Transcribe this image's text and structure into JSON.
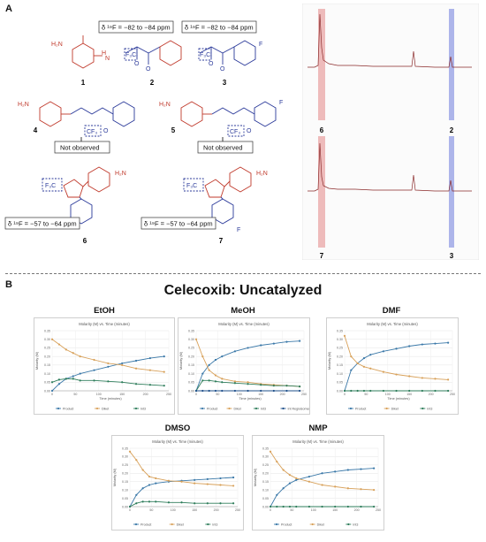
{
  "panel_a": {
    "label": "A",
    "shift_ketone": "δ ¹⁹F = −82 to −84 ppm",
    "shift_pyrazole": "δ ¹⁹F = −57 to −64 ppm",
    "not_observed": "Not observed",
    "compounds": [
      "1",
      "2",
      "3",
      "4",
      "5",
      "6",
      "7"
    ],
    "atom_cf3": "CF₃",
    "atom_f3c": "F₃C",
    "atom_o": "O",
    "atom_f": "F",
    "atom_n": "N",
    "atom_h": "H",
    "group_h2nso2": "H₂N",
    "spectra_labels": {
      "top_left": "6",
      "top_right": "2",
      "bottom_left": "7",
      "bottom_right": "3"
    },
    "colors": {
      "red": "#c0392b",
      "blue": "#2b3a9a",
      "spectrum": "#8b2b2b",
      "band_red": "#e8a0a0",
      "band_blue": "#9aa4e6"
    }
  },
  "panel_b": {
    "label": "B",
    "title": "Celecoxib: Uncatalyzed",
    "solvents": [
      "EtOH",
      "MeOH",
      "DMF",
      "DMSO",
      "NMP"
    ]
  },
  "chart_data": [
    {
      "type": "line",
      "solvent": "EtOH",
      "title": "Molarity (M) vs. Time (minutes)",
      "xlabel": "Time (minutes)",
      "ylabel": "Molarity (M)",
      "xlim": [
        0,
        250
      ],
      "ylim": [
        0,
        0.35
      ],
      "xticks": [
        0,
        50,
        100,
        150,
        200,
        250
      ],
      "yticks": [
        0,
        0.05,
        0.1,
        0.15,
        0.2,
        0.25,
        0.3,
        0.35
      ],
      "x": [
        0,
        15,
        30,
        45,
        60,
        90,
        120,
        150,
        180,
        210,
        240
      ],
      "series": [
        {
          "name": "Product",
          "color": "#3a78a8",
          "values": [
            0.0,
            0.04,
            0.07,
            0.085,
            0.1,
            0.12,
            0.14,
            0.16,
            0.175,
            0.19,
            0.2
          ]
        },
        {
          "name": "Diket",
          "color": "#d8a15a",
          "values": [
            0.3,
            0.27,
            0.24,
            0.22,
            0.2,
            0.18,
            0.16,
            0.15,
            0.13,
            0.12,
            0.11
          ]
        },
        {
          "name": "Int3",
          "color": "#2e7d5b",
          "values": [
            0.05,
            0.065,
            0.07,
            0.07,
            0.06,
            0.06,
            0.055,
            0.05,
            0.04,
            0.035,
            0.03
          ]
        }
      ],
      "legend": [
        "Product",
        "Diket",
        "Int3"
      ]
    },
    {
      "type": "line",
      "solvent": "MeOH",
      "title": "Molarity (M) vs. Time (minutes)",
      "xlabel": "Time (minutes)",
      "ylabel": "Molarity (M)",
      "xlim": [
        0,
        250
      ],
      "ylim": [
        0,
        0.35
      ],
      "xticks": [
        0,
        50,
        100,
        150,
        200,
        250
      ],
      "yticks": [
        0,
        0.05,
        0.1,
        0.15,
        0.2,
        0.25,
        0.3,
        0.35
      ],
      "x": [
        0,
        15,
        30,
        45,
        60,
        90,
        120,
        150,
        180,
        210,
        240
      ],
      "series": [
        {
          "name": "Product",
          "color": "#3a78a8",
          "values": [
            0.0,
            0.1,
            0.15,
            0.18,
            0.2,
            0.23,
            0.25,
            0.265,
            0.275,
            0.285,
            0.29
          ]
        },
        {
          "name": "Diket",
          "color": "#d8a15a",
          "values": [
            0.3,
            0.2,
            0.12,
            0.09,
            0.07,
            0.055,
            0.05,
            0.04,
            0.035,
            0.03,
            0.025
          ]
        },
        {
          "name": "Int3",
          "color": "#2e7d5b",
          "values": [
            0.0,
            0.06,
            0.06,
            0.055,
            0.05,
            0.045,
            0.04,
            0.035,
            0.03,
            0.03,
            0.025
          ]
        },
        {
          "name": "Int Regioisomer",
          "color": "#1f4f8a",
          "values": [
            0.0,
            0.0,
            0.0,
            0.0,
            0.0,
            0.0,
            0.0,
            0.0,
            0.0,
            0.0,
            0.0
          ]
        }
      ],
      "legend": [
        "Product",
        "Diket",
        "Int3",
        "Int Regioisomer"
      ]
    },
    {
      "type": "line",
      "solvent": "DMF",
      "title": "Molarity (M) vs. Time (minutes)",
      "xlabel": "Time (minutes)",
      "ylabel": "Molarity (M)",
      "xlim": [
        0,
        250
      ],
      "ylim": [
        0,
        0.35
      ],
      "xticks": [
        0,
        50,
        100,
        150,
        200,
        250
      ],
      "yticks": [
        0,
        0.05,
        0.1,
        0.15,
        0.2,
        0.25,
        0.3,
        0.35
      ],
      "x": [
        0,
        15,
        30,
        45,
        60,
        90,
        120,
        150,
        180,
        210,
        240
      ],
      "series": [
        {
          "name": "Product",
          "color": "#3a78a8",
          "values": [
            0.0,
            0.12,
            0.16,
            0.19,
            0.21,
            0.23,
            0.245,
            0.26,
            0.27,
            0.275,
            0.28
          ]
        },
        {
          "name": "Diket",
          "color": "#d8a15a",
          "values": [
            0.32,
            0.2,
            0.16,
            0.14,
            0.13,
            0.11,
            0.095,
            0.085,
            0.075,
            0.07,
            0.065
          ]
        },
        {
          "name": "Int3",
          "color": "#2e7d5b",
          "values": [
            0.0,
            0.0,
            0.0,
            0.0,
            0.0,
            0.0,
            0.0,
            0.0,
            0.0,
            0.0,
            0.0
          ]
        }
      ],
      "legend": [
        "Product",
        "Diket",
        "Int3"
      ]
    },
    {
      "type": "line",
      "solvent": "DMSO",
      "title": "Molarity (M) vs. Time (minutes)",
      "xlabel": "",
      "ylabel": "Molarity (M)",
      "xlim": [
        0,
        250
      ],
      "ylim": [
        0,
        0.35
      ],
      "xticks": [
        0,
        50,
        100,
        150,
        200,
        250
      ],
      "yticks": [
        0,
        0.05,
        0.1,
        0.15,
        0.2,
        0.25,
        0.3,
        0.35
      ],
      "x": [
        0,
        15,
        30,
        45,
        60,
        90,
        120,
        150,
        180,
        210,
        240
      ],
      "series": [
        {
          "name": "Product",
          "color": "#3a78a8",
          "values": [
            0.0,
            0.07,
            0.11,
            0.13,
            0.14,
            0.15,
            0.155,
            0.16,
            0.165,
            0.17,
            0.175
          ]
        },
        {
          "name": "Diket",
          "color": "#d8a15a",
          "values": [
            0.33,
            0.28,
            0.22,
            0.18,
            0.17,
            0.155,
            0.15,
            0.14,
            0.135,
            0.13,
            0.125
          ]
        },
        {
          "name": "Int3",
          "color": "#2e7d5b",
          "values": [
            0.0,
            0.02,
            0.03,
            0.03,
            0.03,
            0.025,
            0.025,
            0.02,
            0.02,
            0.02,
            0.02
          ]
        }
      ],
      "legend": [
        "Product",
        "Diket",
        "Int3"
      ]
    },
    {
      "type": "line",
      "solvent": "NMP",
      "title": "Molarity (M) vs. Time (minutes)",
      "xlabel": "",
      "ylabel": "Molarity (M)",
      "xlim": [
        0,
        250
      ],
      "ylim": [
        0,
        0.35
      ],
      "xticks": [
        0,
        50,
        100,
        150,
        200,
        250
      ],
      "yticks": [
        0,
        0.05,
        0.1,
        0.15,
        0.2,
        0.25,
        0.3,
        0.35
      ],
      "x": [
        0,
        15,
        30,
        45,
        60,
        90,
        120,
        150,
        180,
        210,
        240
      ],
      "series": [
        {
          "name": "Product",
          "color": "#3a78a8",
          "values": [
            0.0,
            0.07,
            0.11,
            0.14,
            0.16,
            0.18,
            0.2,
            0.21,
            0.22,
            0.225,
            0.23
          ]
        },
        {
          "name": "Diket",
          "color": "#d8a15a",
          "values": [
            0.33,
            0.27,
            0.22,
            0.19,
            0.17,
            0.15,
            0.13,
            0.12,
            0.11,
            0.105,
            0.1
          ]
        },
        {
          "name": "Int3",
          "color": "#2e7d5b",
          "values": [
            0.0,
            0.0,
            0.0,
            0.0,
            0.0,
            0.0,
            0.0,
            0.0,
            0.0,
            0.0,
            0.0
          ]
        }
      ],
      "legend": [
        "Product",
        "Diket",
        "Int3"
      ]
    }
  ]
}
